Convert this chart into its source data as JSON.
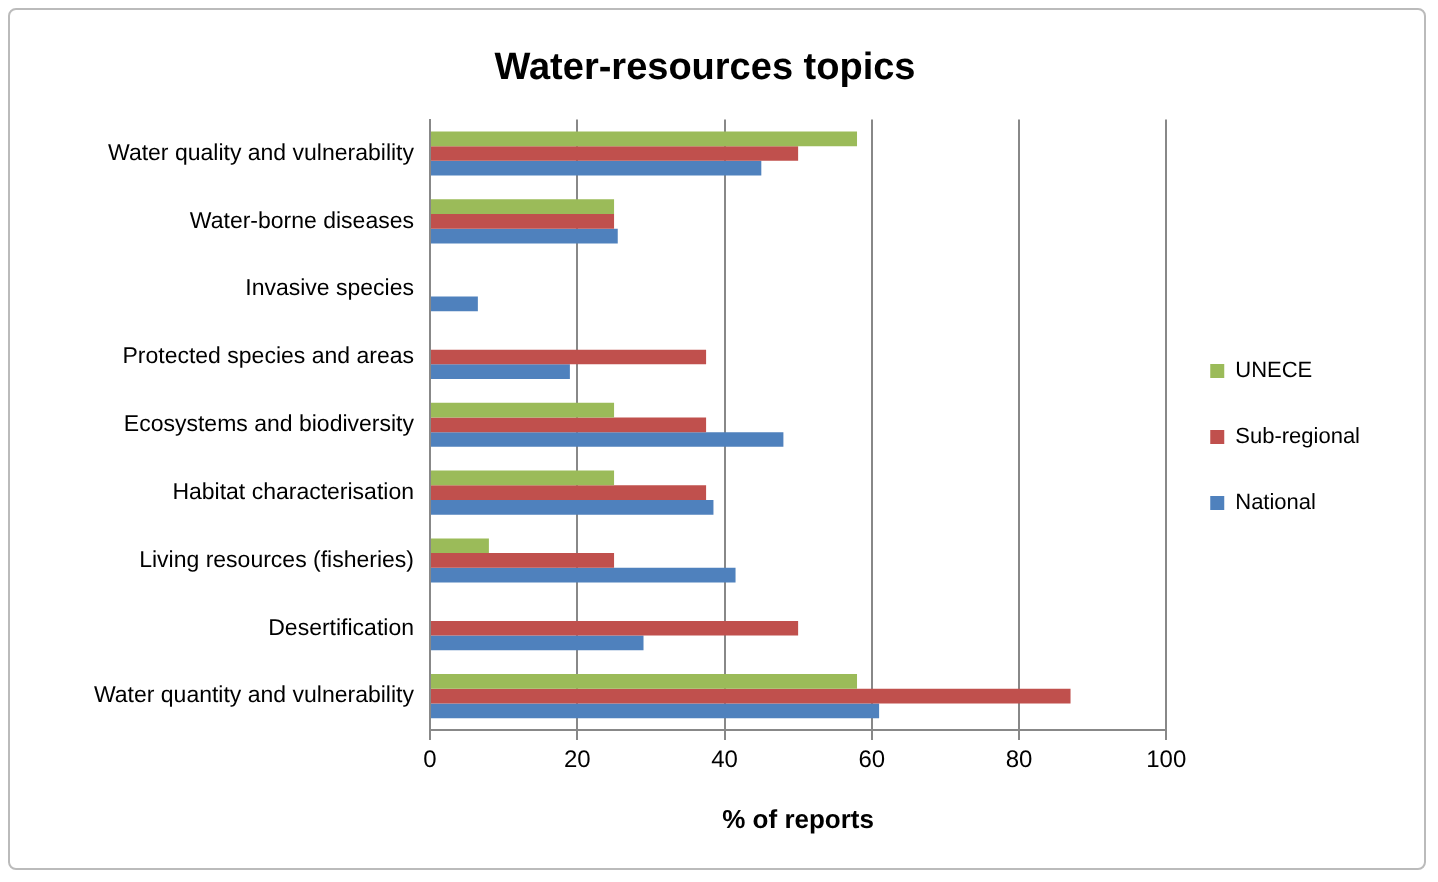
{
  "chart_data": {
    "type": "bar",
    "orientation": "horizontal",
    "title": "Water-resources topics",
    "xlabel": "% of reports",
    "categories": [
      "Water quality and vulnerability",
      "Water-borne diseases",
      "Invasive species",
      "Protected species and areas",
      "Ecosystems and biodiversity",
      "Habitat characterisation",
      "Living resources (fisheries)",
      "Desertification",
      "Water quantity and vulnerability"
    ],
    "series": [
      {
        "name": "UNECE",
        "color": "#9bbb59",
        "values": [
          58,
          25,
          null,
          null,
          25,
          25,
          8,
          null,
          58
        ]
      },
      {
        "name": "Sub-regional",
        "color": "#c0504d",
        "values": [
          50,
          25,
          null,
          37.5,
          37.5,
          37.5,
          25,
          50,
          87
        ]
      },
      {
        "name": "National",
        "color": "#4f81bd",
        "values": [
          45,
          25.5,
          6.5,
          19,
          48,
          38.5,
          41.5,
          29,
          61
        ]
      }
    ],
    "xlim": [
      0,
      100
    ],
    "xticks": [
      0,
      20,
      40,
      60,
      80,
      100
    ],
    "grid": "x",
    "legend": "right"
  }
}
